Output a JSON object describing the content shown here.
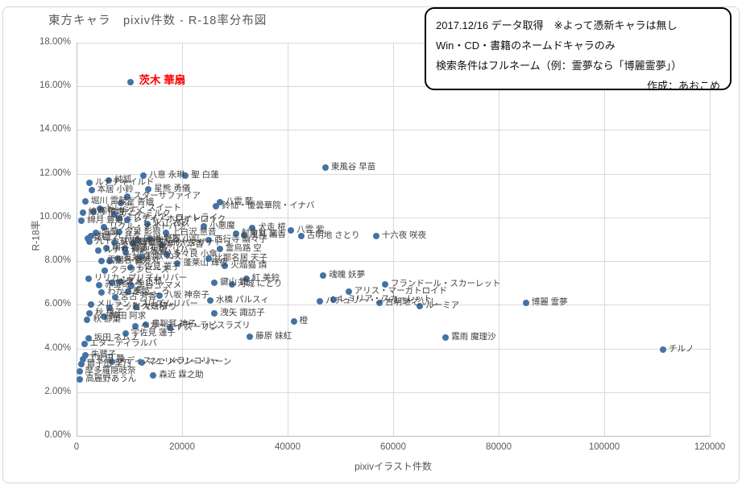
{
  "title": "東方キャラ　pixiv件数 - R-18率分布図",
  "info_box": {
    "line1": "2017.12/16 データ取得　※よって憑新キャラは無し",
    "line2": "Win・CD・書籍のネームドキャラのみ",
    "line3": "検索条件はフルネーム（例：霊夢なら「博麗霊夢」）",
    "author": "作成：あおこめ"
  },
  "chart_data": {
    "type": "scatter",
    "title": "東方キャラ　pixiv件数 - R-18率分布図",
    "xlabel": "pixivイラスト件数",
    "ylabel": "R-18率",
    "xlim": [
      0,
      120000
    ],
    "ylim_percent": [
      0,
      18
    ],
    "x_ticks": [
      "0",
      "20000",
      "40000",
      "60000",
      "80000",
      "100000",
      "120000"
    ],
    "y_ticks": [
      "0.00%",
      "2.00%",
      "4.00%",
      "6.00%",
      "8.00%",
      "10.00%",
      "12.00%",
      "14.00%",
      "16.00%",
      "18.00%"
    ],
    "grid": true,
    "legend": "none",
    "point_color": "#4472a4",
    "highlight_color": "#ff0000",
    "highlight": "茨木 華扇",
    "points": [
      {
        "name": "茨木 華扇",
        "x": 10000,
        "y": 16.2
      },
      {
        "name": "東風谷 早苗",
        "x": 47000,
        "y": 12.3
      },
      {
        "name": "八意 永琳",
        "x": 12500,
        "y": 11.9
      },
      {
        "name": "聖 白蓮",
        "x": 20500,
        "y": 11.9
      },
      {
        "name": "純狐",
        "x": 6000,
        "y": 11.7
      },
      {
        "name": "ルナチャイルド",
        "x": 2300,
        "y": 11.6
      },
      {
        "name": "星熊 勇儀",
        "x": 13500,
        "y": 11.3
      },
      {
        "name": "本居 小鈴",
        "x": 2700,
        "y": 11.25
      },
      {
        "name": "スターサファイア",
        "x": 9500,
        "y": 10.95
      },
      {
        "name": "堀川 雷鼓",
        "x": 1500,
        "y": 10.75
      },
      {
        "name": "八雲 藍",
        "x": 27000,
        "y": 10.7
      },
      {
        "name": "霍 青娥",
        "x": 8200,
        "y": 10.65
      },
      {
        "name": "鈴仙・優曇華院・イナバ",
        "x": 26300,
        "y": 10.5
      },
      {
        "name": "ドレミー・スイート",
        "x": 4200,
        "y": 10.4
      },
      {
        "name": "稀神 サグメ",
        "x": 3000,
        "y": 10.25
      },
      {
        "name": "綿月 依姫",
        "x": 1000,
        "y": 10.2
      },
      {
        "name": "サニーミルク",
        "x": 7000,
        "y": 10.15
      },
      {
        "name": "ミスティア・ローレライ",
        "x": 8000,
        "y": 9.95
      },
      {
        "name": "レティ・ホワイトロック",
        "x": 9500,
        "y": 9.9
      },
      {
        "name": "綿月 豊姫",
        "x": 800,
        "y": 9.85
      },
      {
        "name": "永江 衣玖",
        "x": 13300,
        "y": 9.7
      },
      {
        "name": "小悪魔",
        "x": 24000,
        "y": 9.6
      },
      {
        "name": "リグル・ナイトバグ",
        "x": 5000,
        "y": 9.55
      },
      {
        "name": "犬走 椛",
        "x": 33200,
        "y": 9.5
      },
      {
        "name": "八雲 紫",
        "x": 40500,
        "y": 9.4
      },
      {
        "name": "今泉 影狼",
        "x": 7900,
        "y": 9.35
      },
      {
        "name": "上白沢 慧音",
        "x": 16800,
        "y": 9.3
      },
      {
        "name": "清蘭",
        "x": 3500,
        "y": 9.3
      },
      {
        "name": "射命丸 文",
        "x": 30000,
        "y": 9.25
      },
      {
        "name": "風見 幽香",
        "x": 31600,
        "y": 9.2
      },
      {
        "name": "九十九 弁々",
        "x": 2600,
        "y": 9.15
      },
      {
        "name": "古明地 さとり",
        "x": 42400,
        "y": 9.15
      },
      {
        "name": "十六夜 咲夜",
        "x": 56600,
        "y": 9.15
      },
      {
        "name": "鈴瑚",
        "x": 2000,
        "y": 9.05
      },
      {
        "name": "小野塚 小町",
        "x": 13700,
        "y": 9.0
      },
      {
        "name": "西行寺 幽々子",
        "x": 24900,
        "y": 8.95
      },
      {
        "name": "因幡 てゐ",
        "x": 11500,
        "y": 8.95
      },
      {
        "name": "九十九 八橋",
        "x": 2300,
        "y": 8.9
      },
      {
        "name": "蘇我 屠自古",
        "x": 7000,
        "y": 8.85
      },
      {
        "name": "四季映姫・ヤマザナドゥ",
        "x": 10500,
        "y": 8.8
      },
      {
        "name": "伊吹 萃香",
        "x": 16000,
        "y": 8.75
      },
      {
        "name": "幽谷 響子",
        "x": 5500,
        "y": 8.6
      },
      {
        "name": "霊烏路 空",
        "x": 27000,
        "y": 8.55
      },
      {
        "name": "物部 布都",
        "x": 9000,
        "y": 8.55
      },
      {
        "name": "ルナサ・プリズムリバー",
        "x": 4000,
        "y": 8.5
      },
      {
        "name": "村紗 水蜜",
        "x": 9200,
        "y": 8.4
      },
      {
        "name": "多々良 小傘",
        "x": 17000,
        "y": 8.3
      },
      {
        "name": "封獣 ぬえ",
        "x": 12000,
        "y": 8.2
      },
      {
        "name": "比那名居 天子",
        "x": 24900,
        "y": 8.1
      },
      {
        "name": "寅丸 星",
        "x": 7600,
        "y": 8.1
      },
      {
        "name": "雲居 一輪",
        "x": 4600,
        "y": 8.0
      },
      {
        "name": "少名 針妙丸",
        "x": 6100,
        "y": 8.0
      },
      {
        "name": "蓬莱山 輝夜",
        "x": 19000,
        "y": 7.9
      },
      {
        "name": "火焔猫 燐",
        "x": 28000,
        "y": 7.8
      },
      {
        "name": "宇佐見 菫子",
        "x": 10000,
        "y": 7.7
      },
      {
        "name": "クラウンピース",
        "x": 5200,
        "y": 7.55
      },
      {
        "name": "魂魄 妖夢",
        "x": 46600,
        "y": 7.35
      },
      {
        "name": "リリカ・プリズムリバー",
        "x": 2100,
        "y": 7.2
      },
      {
        "name": "紅 美鈴",
        "x": 32000,
        "y": 7.2
      },
      {
        "name": "鬼人 正邪",
        "x": 8100,
        "y": 7.05
      },
      {
        "name": "キスメ",
        "x": 6600,
        "y": 7.0
      },
      {
        "name": "鍵山 雛",
        "x": 26000,
        "y": 7.0
      },
      {
        "name": "河城 にとり",
        "x": 29300,
        "y": 6.95
      },
      {
        "name": "フランドール・スカーレット",
        "x": 58300,
        "y": 6.95
      },
      {
        "name": "赤蛮奇",
        "x": 4100,
        "y": 6.9
      },
      {
        "name": "黒谷 ヤマメ",
        "x": 10200,
        "y": 6.85
      },
      {
        "name": "秦 こころ",
        "x": 9600,
        "y": 6.6
      },
      {
        "name": "アリス・マーガトロイド",
        "x": 51400,
        "y": 6.6
      },
      {
        "name": "わかさぎ姫",
        "x": 4600,
        "y": 6.55
      },
      {
        "name": "八坂 神奈子",
        "x": 15500,
        "y": 6.4
      },
      {
        "name": "宮古 芳香",
        "x": 7100,
        "y": 6.35
      },
      {
        "name": "レミリア・スカーレット",
        "x": 48500,
        "y": 6.25
      },
      {
        "name": "水橋 パルスィ",
        "x": 25200,
        "y": 6.2
      },
      {
        "name": "パチュリー・ノーレッジ",
        "x": 46000,
        "y": 6.15
      },
      {
        "name": "古明地 こいし",
        "x": 57250,
        "y": 6.1
      },
      {
        "name": "博麗 霊夢",
        "x": 85000,
        "y": 6.1
      },
      {
        "name": "メルラン・プリズムリバー",
        "x": 2600,
        "y": 6.0
      },
      {
        "name": "ルーミア",
        "x": 64900,
        "y": 5.95
      },
      {
        "name": "大妖精",
        "x": 11200,
        "y": 5.9
      },
      {
        "name": "二ッ岩 マミゾウ",
        "x": 6100,
        "y": 5.85
      },
      {
        "name": "洩矢 諏訪子",
        "x": 26000,
        "y": 5.6
      },
      {
        "name": "秋 穣子",
        "x": 2300,
        "y": 5.6
      },
      {
        "name": "稗田 阿求",
        "x": 5100,
        "y": 5.45
      },
      {
        "name": "秋 静葉",
        "x": 1900,
        "y": 5.3
      },
      {
        "name": "橙",
        "x": 41000,
        "y": 5.25
      },
      {
        "name": "豊聡耳 神子",
        "x": 13000,
        "y": 5.1
      },
      {
        "name": "ヘカーティア・ラピスラズリ",
        "x": 11000,
        "y": 5.0
      },
      {
        "name": "ナズーリン",
        "x": 17600,
        "y": 4.95
      },
      {
        "name": "宇佐見 蓮子",
        "x": 9100,
        "y": 4.7
      },
      {
        "name": "藤原 妹紅",
        "x": 32700,
        "y": 4.55
      },
      {
        "name": "霧雨 魔理沙",
        "x": 69800,
        "y": 4.5
      },
      {
        "name": "坂田 ネムノ",
        "x": 2100,
        "y": 4.45
      },
      {
        "name": "エタニティラルバ",
        "x": 1300,
        "y": 4.2
      },
      {
        "name": "チルノ",
        "x": 111000,
        "y": 3.95
      },
      {
        "name": "朱鷺子",
        "x": 1500,
        "y": 3.7
      },
      {
        "name": "丁礼田 舞",
        "x": 1000,
        "y": 3.5
      },
      {
        "name": "メディスン・メランコリー",
        "x": 6600,
        "y": 3.4
      },
      {
        "name": "マエリベリー・ハーン",
        "x": 12200,
        "y": 3.35
      },
      {
        "name": "爾子田 里乃",
        "x": 700,
        "y": 3.3
      },
      {
        "name": "摩多羅隠岐奈",
        "x": 400,
        "y": 2.95
      },
      {
        "name": "森近 霖之助",
        "x": 14400,
        "y": 2.75
      },
      {
        "name": "高麗野あうん",
        "x": 500,
        "y": 2.6
      }
    ]
  }
}
